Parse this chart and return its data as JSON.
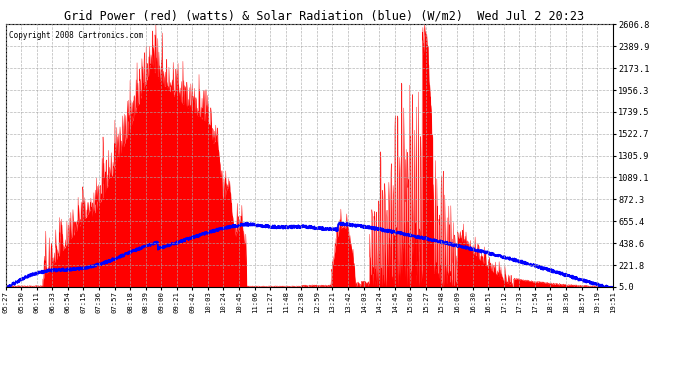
{
  "title": "Grid Power (red) (watts) & Solar Radiation (blue) (W/m2)  Wed Jul 2 20:23",
  "copyright": "Copyright 2008 Cartronics.com",
  "bg_color": "#ffffff",
  "plot_bg_color": "#ffffff",
  "grid_color": "#aaaaaa",
  "red_color": "#ff0000",
  "blue_color": "#0000ff",
  "yticks": [
    5.0,
    221.8,
    438.6,
    655.4,
    872.3,
    1089.1,
    1305.9,
    1522.7,
    1739.5,
    1956.3,
    2173.1,
    2389.9,
    2606.8
  ],
  "ymin": 5.0,
  "ymax": 2606.8,
  "xtick_labels": [
    "05:27",
    "05:50",
    "06:11",
    "06:33",
    "06:54",
    "07:15",
    "07:36",
    "07:57",
    "08:18",
    "08:39",
    "09:00",
    "09:21",
    "09:42",
    "10:03",
    "10:24",
    "10:45",
    "11:06",
    "11:27",
    "11:48",
    "12:38",
    "12:59",
    "13:21",
    "13:42",
    "14:03",
    "14:24",
    "14:45",
    "15:06",
    "15:27",
    "15:48",
    "16:09",
    "16:30",
    "16:51",
    "17:12",
    "17:33",
    "17:54",
    "18:15",
    "18:36",
    "18:57",
    "19:19",
    "19:51"
  ]
}
